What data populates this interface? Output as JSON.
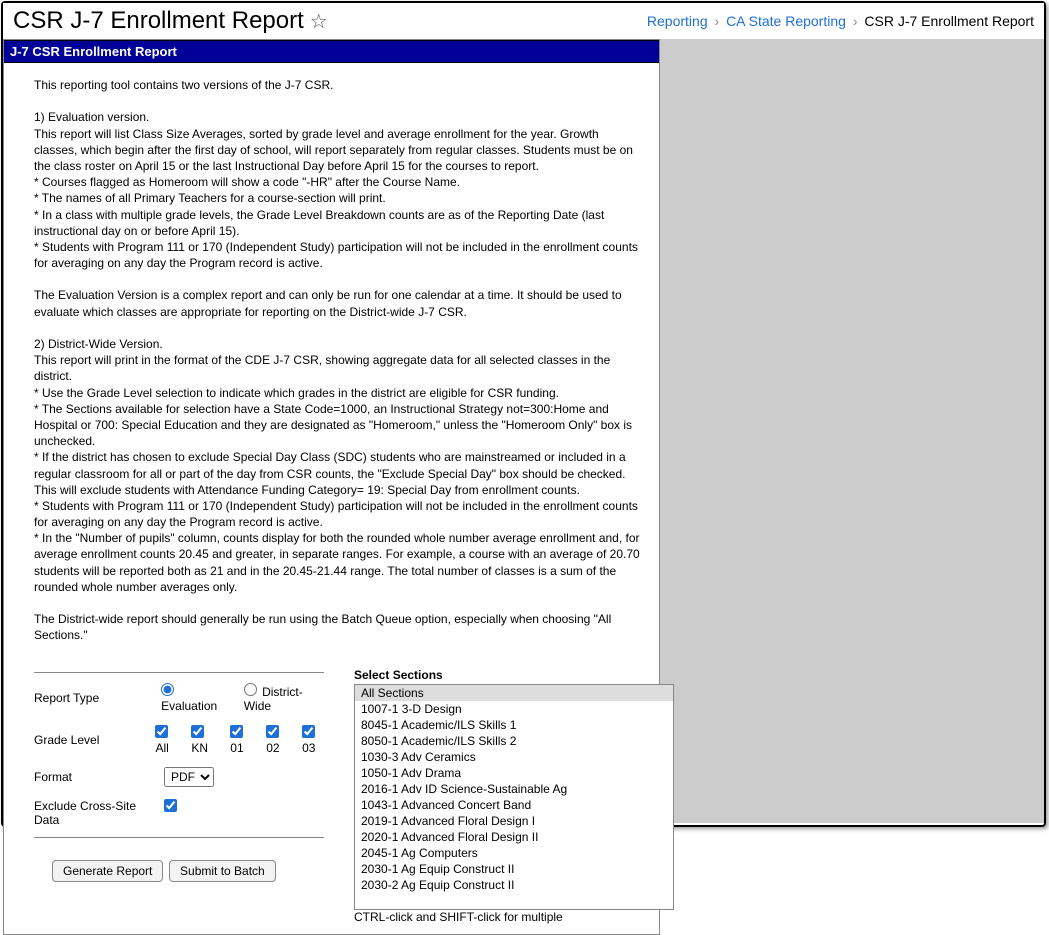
{
  "page_title": "CSR J-7 Enrollment Report",
  "breadcrumb": {
    "item1": "Reporting",
    "item2": "CA State Reporting",
    "item3": "CSR J-7 Enrollment Report"
  },
  "section_header": "J-7 CSR Enrollment Report",
  "description_lines": [
    "This reporting tool contains two versions of the J-7 CSR.",
    "",
    "1) Evaluation version.",
    "This report will list Class Size Averages, sorted by grade level and average enrollment for the year. Growth classes, which begin after the first day of school, will report separately from regular classes. Students must be on the class roster on April 15 or the last Instructional Day before April 15 for the courses to report.",
    "* Courses flagged as Homeroom will show a code \"-HR\" after the Course Name.",
    "* The names of all Primary Teachers for a course-section will print.",
    "* In a class with multiple grade levels, the Grade Level Breakdown counts are as of the Reporting Date (last instructional day on or before April 15).",
    "* Students with Program 111 or 170 (Independent Study) participation will not be included in the enrollment counts for averaging on any day the Program record is active.",
    "",
    "The Evaluation Version is a complex report and can only be run for one calendar at a time. It should be used to evaluate which classes are appropriate for reporting on the District-wide J-7 CSR.",
    "",
    "2) District-Wide Version.",
    "This report will print in the format of the CDE J-7 CSR, showing aggregate data for all selected classes in the district.",
    "* Use the Grade Level selection to indicate which grades in the district are eligible for CSR funding.",
    "* The Sections available for selection have a State Code=1000, an Instructional Strategy not=300:Home and Hospital or 700: Special Education and they are designated as \"Homeroom,\" unless the \"Homeroom Only\" box is unchecked.",
    "* If the district has chosen to exclude Special Day Class (SDC) students who are mainstreamed or included in a regular classroom for all or part of the day from CSR counts, the \"Exclude Special Day\" box should be checked. This will exclude students with Attendance Funding Category= 19: Special Day from enrollment counts.",
    "* Students with Program 111 or 170 (Independent Study) participation will not be included in the enrollment counts for averaging on any day the Program record is active.",
    "* In the \"Number of pupils\" column, counts display for both the rounded whole number average enrollment and, for average enrollment counts 20.45 and greater, in separate ranges. For example, a course with an average of 20.70 students will be reported both as 21 and in the 20.45-21.44 range. The total number of classes is a sum of the rounded whole number averages only.",
    "",
    "The District-wide report should generally be run using the Batch Queue option, especially when choosing \"All Sections.\""
  ],
  "form": {
    "report_type_label": "Report Type",
    "report_type_options": {
      "evaluation": "Evaluation",
      "district_wide": "District-Wide"
    },
    "grade_level_label": "Grade Level",
    "grade_levels": [
      "All",
      "KN",
      "01",
      "02",
      "03"
    ],
    "format_label": "Format",
    "format_options": [
      "PDF"
    ],
    "exclude_label": "Exclude Cross-Site Data",
    "generate_button": "Generate Report",
    "submit_button": "Submit to Batch"
  },
  "sections": {
    "label": "Select Sections",
    "hint": "CTRL-click and SHIFT-click for multiple",
    "items": [
      "All Sections",
      "1007-1 3-D Design",
      "8045-1 Academic/ILS Skills 1",
      "8050-1 Academic/ILS Skills 2",
      "1030-3 Adv Ceramics",
      "1050-1 Adv Drama",
      "2016-1 Adv ID Science-Sustainable Ag",
      "1043-1 Advanced Concert Band",
      "2019-1 Advanced Floral Design I",
      "2020-1 Advanced Floral Design II",
      "2045-1 Ag Computers",
      "2030-1 Ag Equip Construct II",
      "2030-2 Ag Equip Construct II"
    ]
  }
}
